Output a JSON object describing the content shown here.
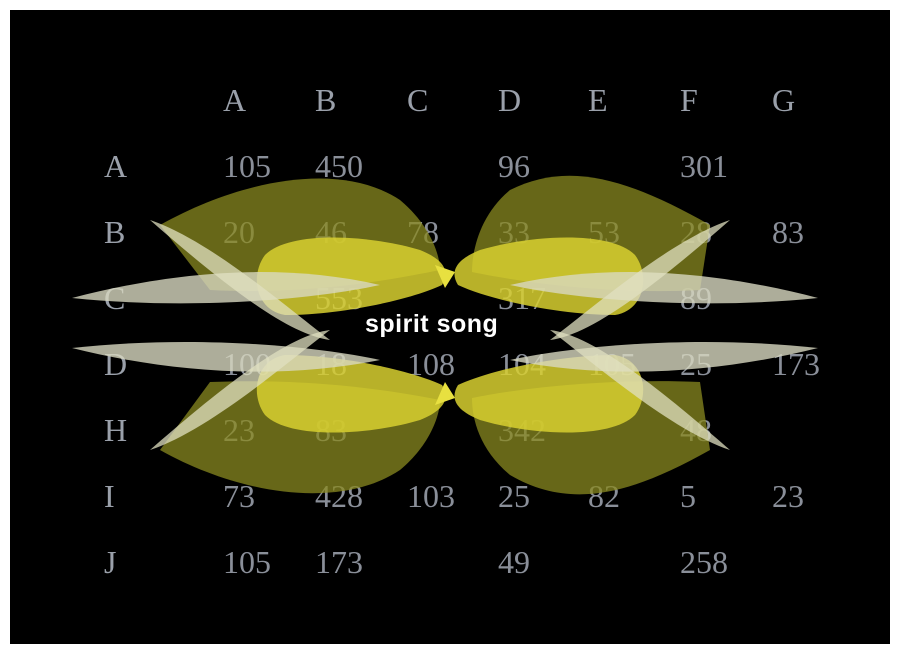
{
  "title": "spirit song",
  "columns": [
    "A",
    "B",
    "C",
    "D",
    "E",
    "F",
    "G"
  ],
  "rows": [
    {
      "label": "A",
      "cells": [
        "105",
        "450",
        "",
        "96",
        "",
        "301",
        ""
      ]
    },
    {
      "label": "B",
      "cells": [
        "20",
        "46",
        "78",
        "33",
        "53",
        "28",
        "83"
      ]
    },
    {
      "label": "C",
      "cells": [
        "",
        "553",
        "",
        "317",
        "",
        "89",
        ""
      ]
    },
    {
      "label": "D",
      "cells": [
        "100",
        "18",
        "108",
        "104",
        "105",
        "25",
        "173"
      ]
    },
    {
      "label": "H",
      "cells": [
        "23",
        "83",
        "",
        "342",
        "",
        "48",
        ""
      ]
    },
    {
      "label": "I",
      "cells": [
        "73",
        "428",
        "103",
        "25",
        "82",
        "5",
        "23"
      ]
    },
    {
      "label": "J",
      "cells": [
        "105",
        "173",
        "",
        "49",
        "",
        "258",
        ""
      ]
    }
  ],
  "colors": {
    "background": "#000000",
    "text": "#8a8f99",
    "yellow": "#c8c020",
    "bright_yellow": "#e8e040",
    "pale": "#d8d8b8"
  }
}
